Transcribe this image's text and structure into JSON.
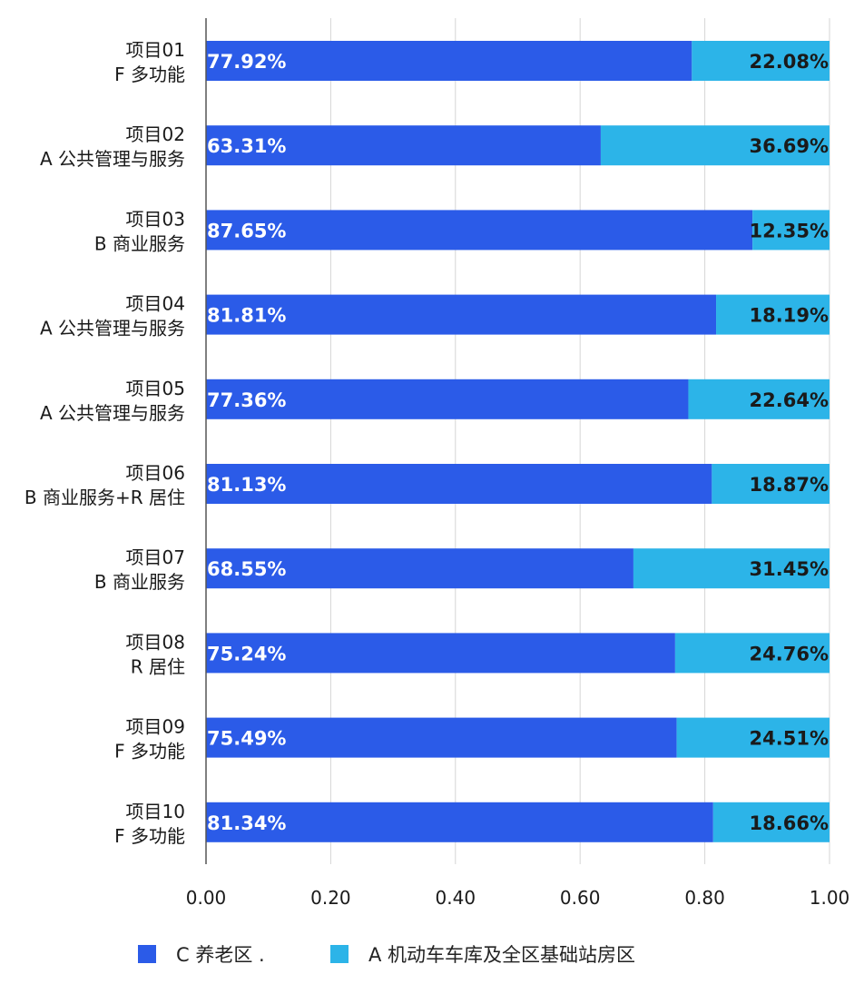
{
  "chart_data": {
    "type": "bar",
    "orientation": "horizontal",
    "stacked": true,
    "categories": [
      [
        "项目01",
        "F 多功能"
      ],
      [
        "项目02",
        "A 公共管理与服务"
      ],
      [
        "项目03",
        "B 商业服务"
      ],
      [
        "项目04",
        "A 公共管理与服务"
      ],
      [
        "项目05",
        "A 公共管理与服务"
      ],
      [
        "项目06",
        "B 商业服务+R 居住"
      ],
      [
        "项目07",
        "B 商业服务"
      ],
      [
        "项目08",
        "R 居住"
      ],
      [
        "项目09",
        "F 多功能"
      ],
      [
        "项目10",
        "F 多功能"
      ]
    ],
    "series": [
      {
        "name": "C 养老区 .",
        "color": "#2b5be8",
        "values": [
          0.7792,
          0.6331,
          0.8765,
          0.8181,
          0.7736,
          0.8113,
          0.6855,
          0.7524,
          0.7549,
          0.8134
        ],
        "labels": [
          "77.92%",
          "63.31%",
          "87.65%",
          "81.81%",
          "77.36%",
          "81.13%",
          "68.55%",
          "75.24%",
          "75.49%",
          "81.34%"
        ]
      },
      {
        "name": "A 机动车车库及全区基础站房区",
        "color": "#2cb4e8",
        "values": [
          0.2208,
          0.3669,
          0.1235,
          0.1819,
          0.2264,
          0.1887,
          0.3145,
          0.2476,
          0.2451,
          0.1866
        ],
        "labels": [
          "22.08%",
          "36.69%",
          "12.35%",
          "18.19%",
          "22.64%",
          "18.87%",
          "31.45%",
          "24.76%",
          "24.51%",
          "18.66%"
        ]
      }
    ],
    "xlim": [
      0,
      1
    ],
    "xticks": [
      "0.00",
      "0.20",
      "0.40",
      "0.60",
      "0.80",
      "1.00"
    ],
    "grid": true,
    "legend_position": "bottom"
  }
}
